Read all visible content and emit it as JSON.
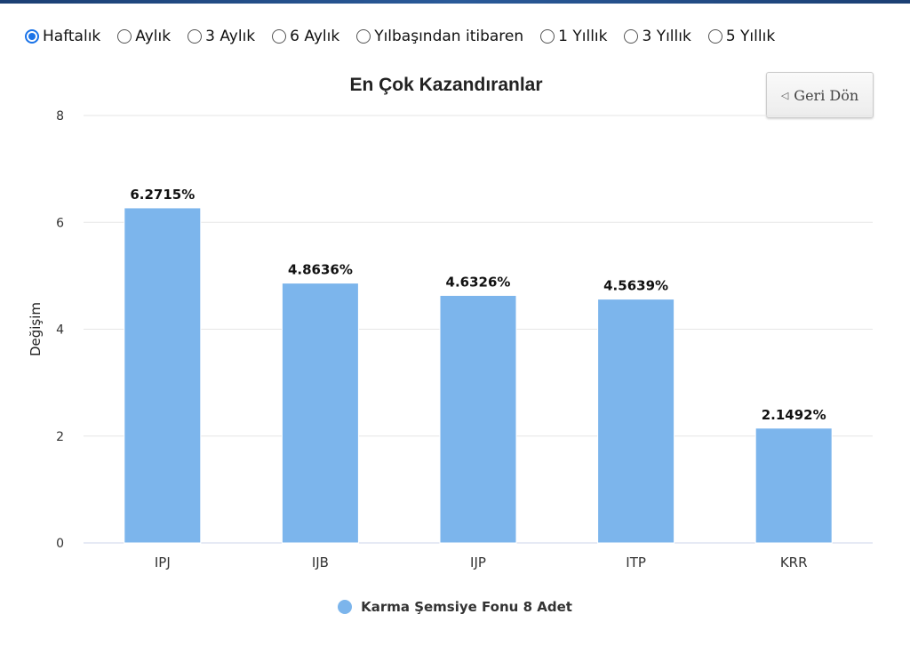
{
  "period_options": [
    {
      "label": "Haftalık",
      "selected": true
    },
    {
      "label": "Aylık",
      "selected": false
    },
    {
      "label": "3 Aylık",
      "selected": false
    },
    {
      "label": "6 Aylık",
      "selected": false
    },
    {
      "label": "Yılbaşından itibaren",
      "selected": false
    },
    {
      "label": "1 Yıllık",
      "selected": false
    },
    {
      "label": "3 Yıllık",
      "selected": false
    },
    {
      "label": "5 Yıllık",
      "selected": false
    }
  ],
  "back_button": {
    "label": "Geri Dön"
  },
  "colors": {
    "bar": "#7cb5ec",
    "grid": "#e6e6e6",
    "accent": "#1a73e8"
  },
  "chart_data": {
    "type": "bar",
    "title": "En Çok Kazandıranlar",
    "ylabel": "Değişim",
    "xlabel": "",
    "ylim": [
      0,
      8
    ],
    "yticks": [
      0,
      2,
      4,
      6,
      8
    ],
    "categories": [
      "IPJ",
      "IJB",
      "IJP",
      "ITP",
      "KRR"
    ],
    "series": [
      {
        "name": "Karma Şemsiye Fonu 8 Adet",
        "values": [
          6.2715,
          4.8636,
          4.6326,
          4.5639,
          2.1492
        ],
        "data_labels": [
          "6.2715%",
          "4.8636%",
          "4.6326%",
          "4.5639%",
          "2.1492%"
        ]
      }
    ],
    "legend": "bottom-center",
    "grid": true
  }
}
